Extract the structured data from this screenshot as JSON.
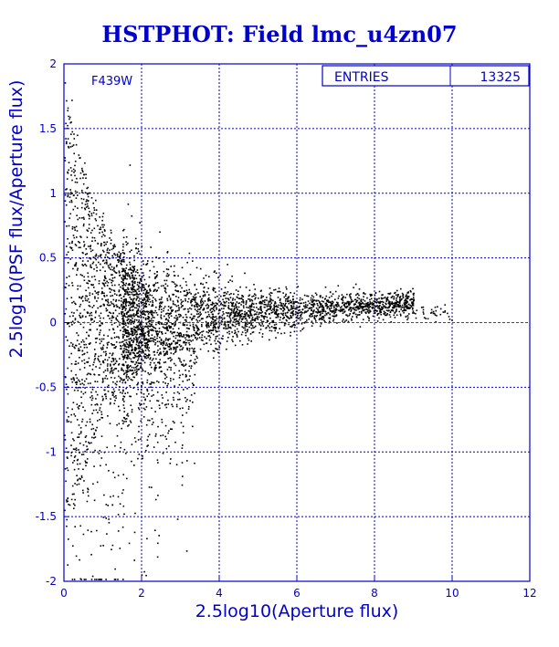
{
  "chart_data": {
    "type": "scatter",
    "title": "HSTPHOT: Field lmc_u4zn07",
    "xlabel": "2.5log10(Aperture flux)",
    "ylabel": "2.5log10(PSF flux/Aperture flux)",
    "xlim": [
      0,
      12
    ],
    "ylim": [
      -2,
      2
    ],
    "x_ticks": [
      "0",
      "2",
      "4",
      "6",
      "8",
      "10",
      "12"
    ],
    "y_ticks": [
      "-2",
      "-1.5",
      "-1",
      "-0.5",
      "0",
      "0.5",
      "1",
      "1.5",
      "2"
    ],
    "x_tick_values": [
      0,
      2,
      4,
      6,
      8,
      10,
      12
    ],
    "y_tick_values": [
      -2,
      -1.5,
      -1,
      -0.5,
      0,
      0.5,
      1,
      1.5,
      2
    ],
    "grid": true,
    "reference_line": {
      "y": 0,
      "color": "#ff0000"
    },
    "filter_label": "F439W",
    "stats": {
      "entries_label": "ENTRIES",
      "entries_value": "13325"
    },
    "points_description_note": "",
    "sample_points": [
      [
        0.05,
        1.72
      ],
      [
        0.1,
        1.6
      ],
      [
        0.15,
        1.55
      ],
      [
        0.2,
        1.48
      ],
      [
        0.3,
        1.38
      ],
      [
        0.4,
        1.28
      ],
      [
        0.5,
        1.15
      ],
      [
        0.6,
        1.05
      ],
      [
        0.8,
        0.95
      ],
      [
        1.0,
        0.85
      ],
      [
        1.2,
        0.7
      ],
      [
        1.4,
        0.55
      ],
      [
        1.6,
        0.45
      ],
      [
        1.8,
        0.35
      ],
      [
        2.0,
        0.3
      ],
      [
        2.2,
        0.25
      ],
      [
        2.5,
        0.2
      ],
      [
        3.0,
        0.15
      ],
      [
        3.5,
        0.12
      ],
      [
        4.0,
        0.1
      ],
      [
        4.5,
        0.08
      ],
      [
        5.0,
        0.07
      ],
      [
        5.5,
        0.07
      ],
      [
        6.0,
        0.06
      ],
      [
        6.5,
        0.06
      ],
      [
        7.0,
        0.06
      ],
      [
        7.5,
        0.07
      ],
      [
        8.0,
        0.08
      ],
      [
        8.5,
        0.08
      ],
      [
        9.0,
        0.08
      ],
      [
        9.5,
        0.09
      ],
      [
        0.1,
        -1.4
      ],
      [
        0.3,
        -1.8
      ],
      [
        0.6,
        -1.6
      ],
      [
        1.0,
        -1.5
      ],
      [
        1.3,
        -1.9
      ],
      [
        1.6,
        -1.2
      ],
      [
        1.9,
        -0.9
      ],
      [
        2.2,
        -0.6
      ],
      [
        2.6,
        -0.4
      ],
      [
        3.0,
        -0.3
      ],
      [
        3.5,
        -0.2
      ],
      [
        4.0,
        -0.15
      ],
      [
        2.4,
        -1.7
      ],
      [
        2.1,
        -1.95
      ]
    ]
  },
  "colors": {
    "grid": "#0000cc",
    "axis": "#0000cc",
    "points": "#000000",
    "zero_line": "#ff0000",
    "title": "#0000cc"
  }
}
